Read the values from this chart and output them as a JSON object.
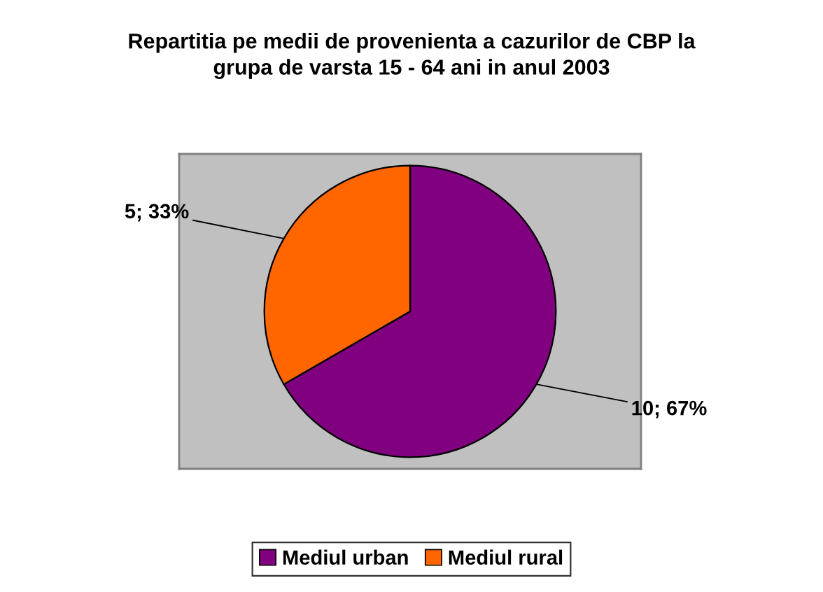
{
  "chart_data": {
    "type": "pie",
    "title": "Repartitia pe medii de provenienta a cazurilor de CBP la\ngrupa de varsta 15 - 64 ani in anul 2003",
    "categories": [
      "Mediul urban",
      "Mediul rural"
    ],
    "values": [
      10,
      5
    ],
    "colors": [
      "#800080",
      "#ff6600"
    ],
    "value_labels": [
      "10; 67%",
      "5; 33%"
    ],
    "legend": "bottom"
  }
}
